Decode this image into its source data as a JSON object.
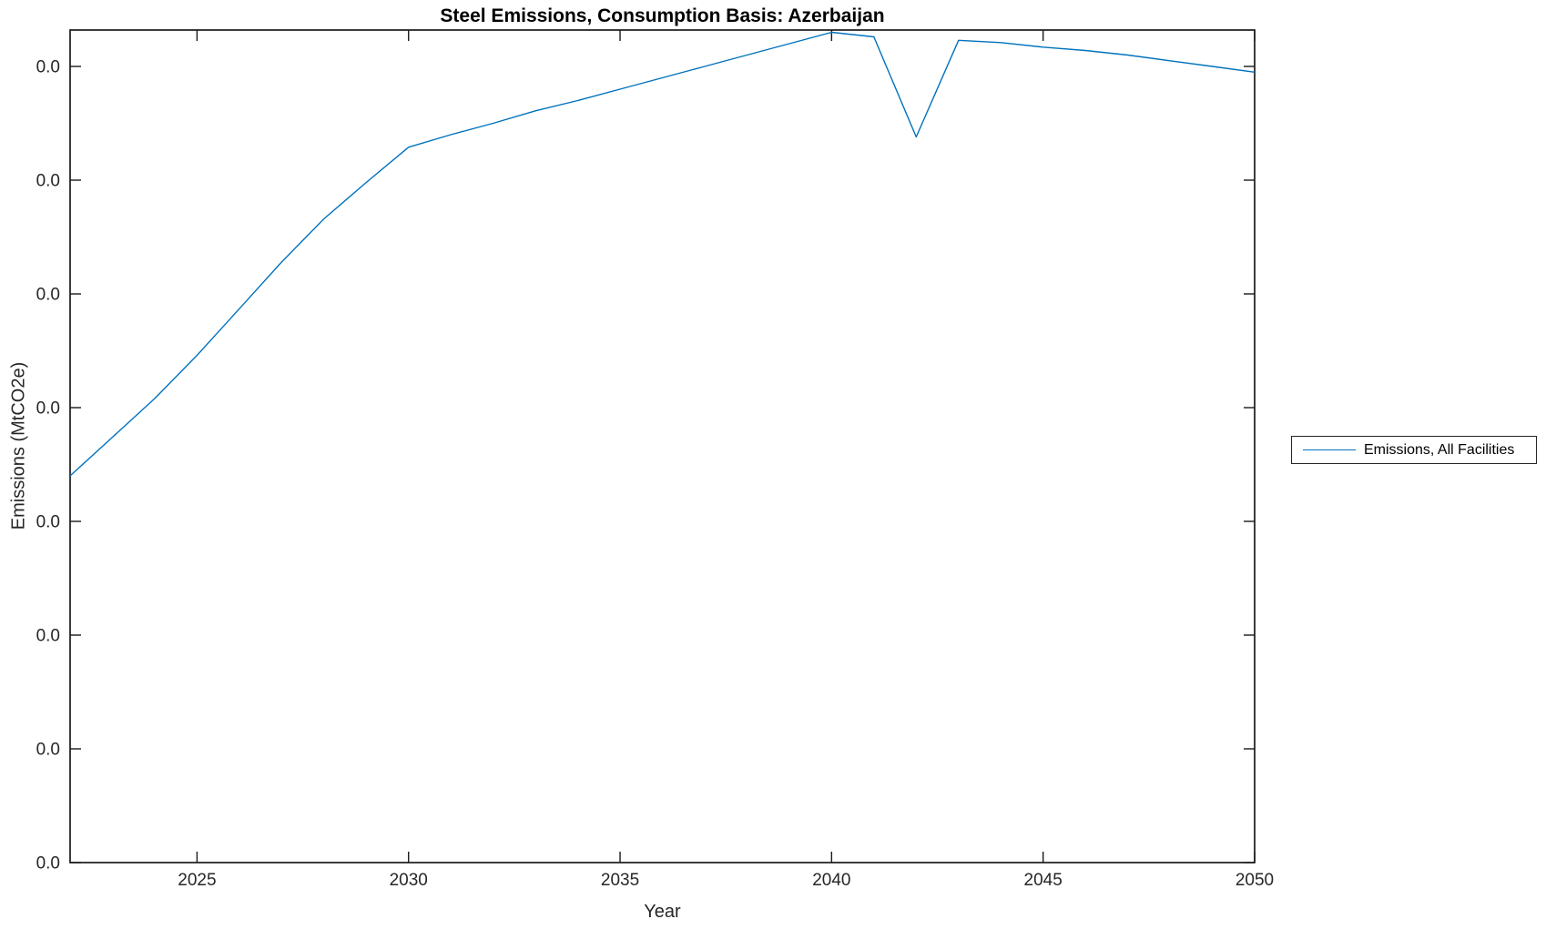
{
  "chart_data": {
    "type": "line",
    "title": "Steel Emissions, Consumption Basis: Azerbaijan",
    "xlabel": "Year",
    "ylabel": "Emissions (MtCO2e)",
    "legend_entries": [
      "Emissions, All Facilities"
    ],
    "legend_position": "outside-right",
    "grid": false,
    "box": true,
    "xlim": [
      2022,
      2050
    ],
    "xticks": [
      2025,
      2030,
      2035,
      2040,
      2045,
      2050
    ],
    "ytick_labels": [
      "0.0",
      "0.0",
      "0.0",
      "0.0",
      "0.0",
      "0.0",
      "0.0",
      "0.0"
    ],
    "y_unit_note": "all y-axis tick labels display 0.0; series y values are in axis tick-spacing units measured from the bottom tick",
    "ylim_units": [
      0,
      7.32
    ],
    "colors": {
      "line": "#0072BD",
      "axis": "#1a1a1a",
      "background": "#ffffff"
    },
    "series": [
      {
        "name": "Emissions, All Facilities",
        "x": [
          2022,
          2023,
          2024,
          2025,
          2026,
          2027,
          2028,
          2029,
          2030,
          2031,
          2032,
          2033,
          2034,
          2035,
          2036,
          2037,
          2038,
          2039,
          2040,
          2041,
          2042,
          2043,
          2044,
          2045,
          2046,
          2047,
          2048,
          2049,
          2050
        ],
        "y": [
          3.4,
          3.74,
          4.08,
          4.46,
          4.87,
          5.28,
          5.66,
          5.98,
          6.29,
          6.4,
          6.5,
          6.61,
          6.7,
          6.8,
          6.9,
          7.0,
          7.1,
          7.2,
          7.3,
          7.26,
          6.38,
          7.23,
          7.21,
          7.17,
          7.14,
          7.1,
          7.05,
          7.0,
          6.95
        ]
      }
    ]
  }
}
